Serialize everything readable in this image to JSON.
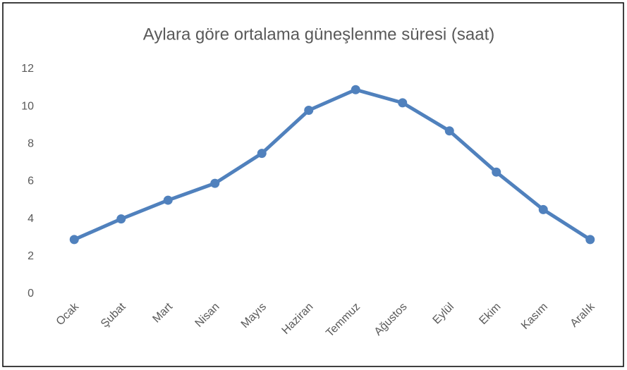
{
  "chart_data": {
    "type": "line",
    "title": "Aylara göre ortalama güneşlenme süresi (saat)",
    "categories": [
      "Ocak",
      "Şubat",
      "Mart",
      "Nisan",
      "Mayıs",
      "Haziran",
      "Temmuz",
      "Ağustos",
      "Eylül",
      "Ekim",
      "Kasım",
      "Aralık"
    ],
    "values": [
      2.9,
      4.0,
      5.0,
      5.9,
      7.5,
      9.8,
      10.9,
      10.2,
      8.7,
      6.5,
      4.5,
      2.9
    ],
    "color": "#5081bd",
    "ylim": [
      0,
      12
    ],
    "yticks": [
      0,
      2,
      4,
      6,
      8,
      10,
      12
    ],
    "grid": false
  }
}
